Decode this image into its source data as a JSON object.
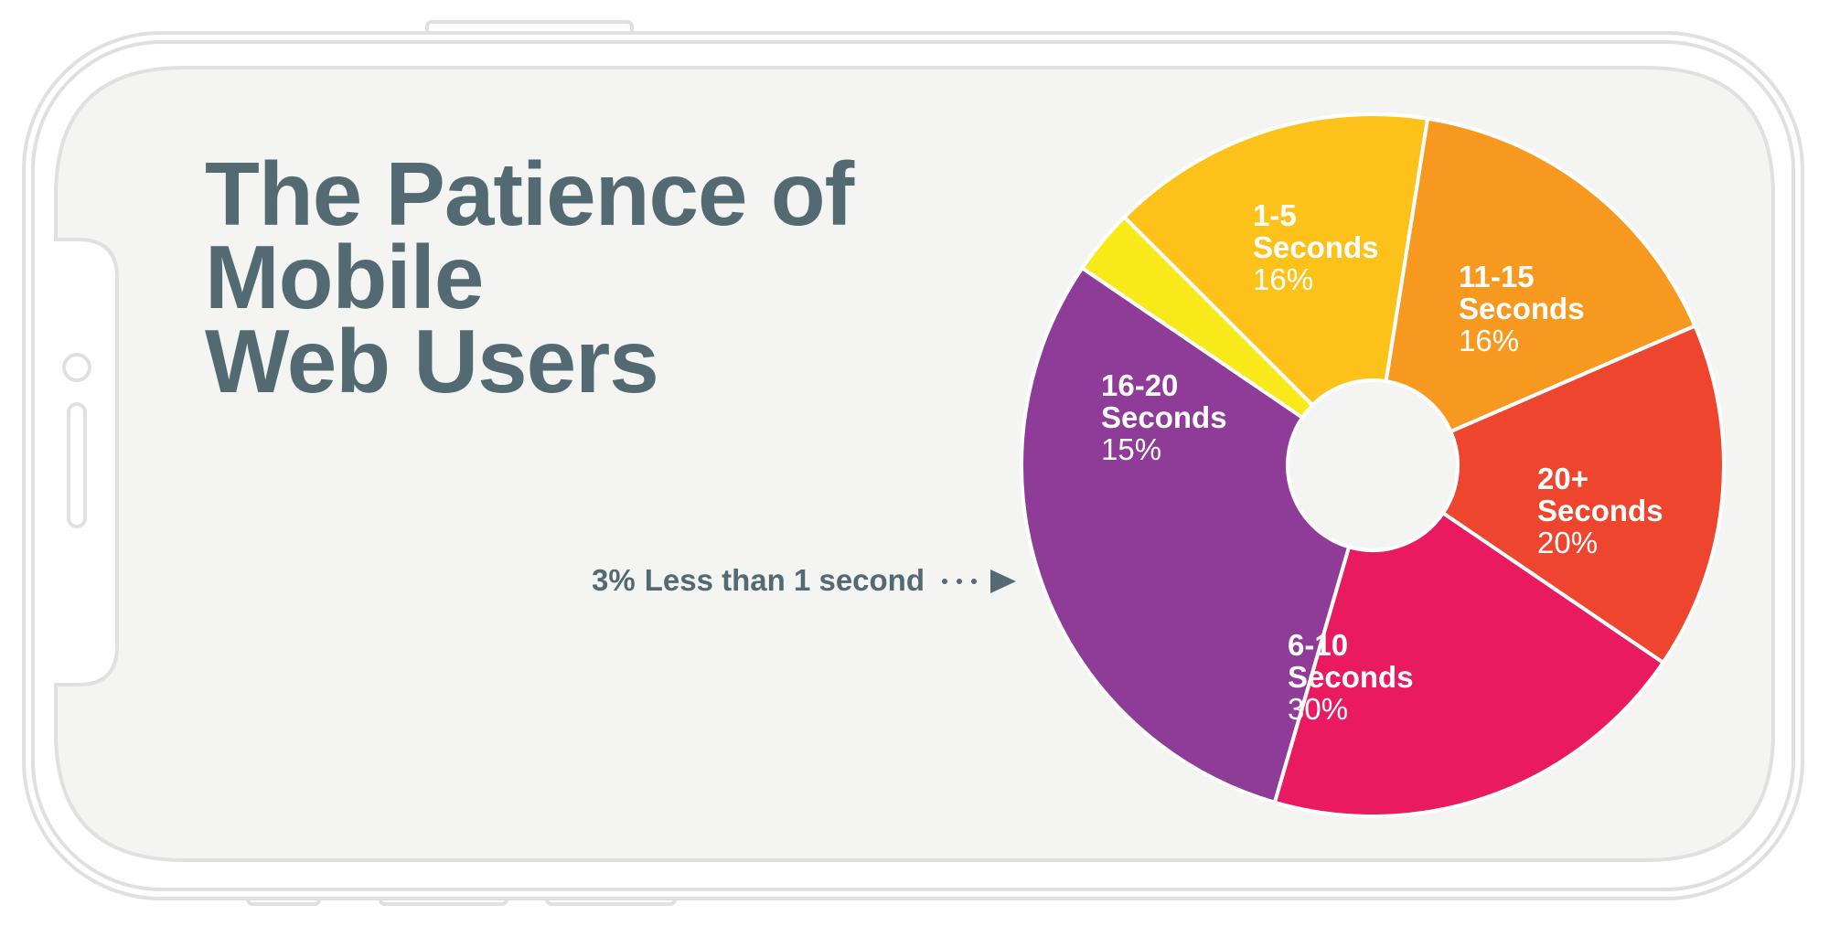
{
  "chart_data": {
    "type": "donut",
    "title": [
      "The Patience of",
      "Mobile",
      "Web Users"
    ],
    "categories": [
      [
        "1-5",
        "Seconds"
      ],
      [
        "11-15",
        "Seconds"
      ],
      [
        "20+",
        "Seconds"
      ],
      [
        "6-10",
        "Seconds"
      ],
      [
        "Less than 1 second"
      ],
      [
        "16-20",
        "Seconds"
      ]
    ],
    "values": [
      16,
      16,
      20,
      30,
      3,
      15
    ],
    "value_labels": [
      "16%",
      "16%",
      "20%",
      "30%",
      "3%",
      "15%"
    ],
    "colors": [
      "#f7991f",
      "#ee452e",
      "#e91a5f",
      "#8e3c97",
      "#f7ea18",
      "#fcc21a"
    ]
  }
}
